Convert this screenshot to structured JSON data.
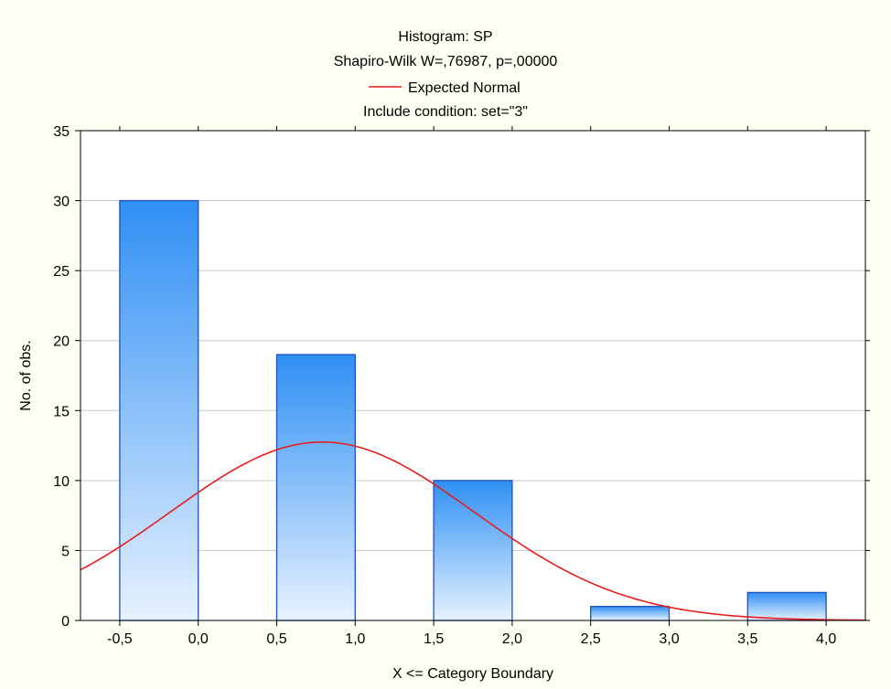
{
  "chart_data": {
    "type": "bar",
    "title": "Histogram: SP",
    "subtitle": "Shapiro-Wilk W=,76987, p=,00000",
    "condition": "Include condition: set=\"3\"",
    "xlabel": "X <= Category Boundary",
    "ylabel": "No. of obs.",
    "xlim": [
      -0.75,
      4.25
    ],
    "ylim": [
      0,
      35
    ],
    "x_ticks": [
      -0.5,
      0.0,
      0.5,
      1.0,
      1.5,
      2.0,
      2.5,
      3.0,
      3.5,
      4.0
    ],
    "x_tick_labels": [
      "-0,5",
      "0,0",
      "0,5",
      "1,0",
      "1,5",
      "2,0",
      "2,5",
      "3,0",
      "3,5",
      "4,0"
    ],
    "y_ticks": [
      0,
      5,
      10,
      15,
      20,
      25,
      30,
      35
    ],
    "y_tick_labels": [
      "0",
      "5",
      "10",
      "15",
      "20",
      "25",
      "30",
      "35"
    ],
    "grid": true,
    "bars": [
      {
        "x_start": -0.5,
        "x_end": 0.0,
        "value": 30
      },
      {
        "x_start": 0.5,
        "x_end": 1.0,
        "value": 19
      },
      {
        "x_start": 1.5,
        "x_end": 2.0,
        "value": 10
      },
      {
        "x_start": 2.5,
        "x_end": 3.0,
        "value": 1
      },
      {
        "x_start": 3.5,
        "x_end": 4.0,
        "value": 2
      }
    ],
    "series": [
      {
        "name": "Expected Normal",
        "type": "line",
        "color": "#e81c1c",
        "mean": 0.79,
        "sd": 0.97,
        "n": 62,
        "bin_width": 0.5
      }
    ],
    "legend": {
      "position": "top-center",
      "entries": [
        "Expected Normal"
      ]
    },
    "colors": {
      "bar_top": "#2f8ff4",
      "bar_bottom": "#e7f2ff",
      "bar_stroke": "#1f4fbf",
      "curve": "#e81c1c",
      "grid": "#c8c8c8",
      "background": "#fefef3",
      "plot_bg": "#ffffff"
    }
  }
}
